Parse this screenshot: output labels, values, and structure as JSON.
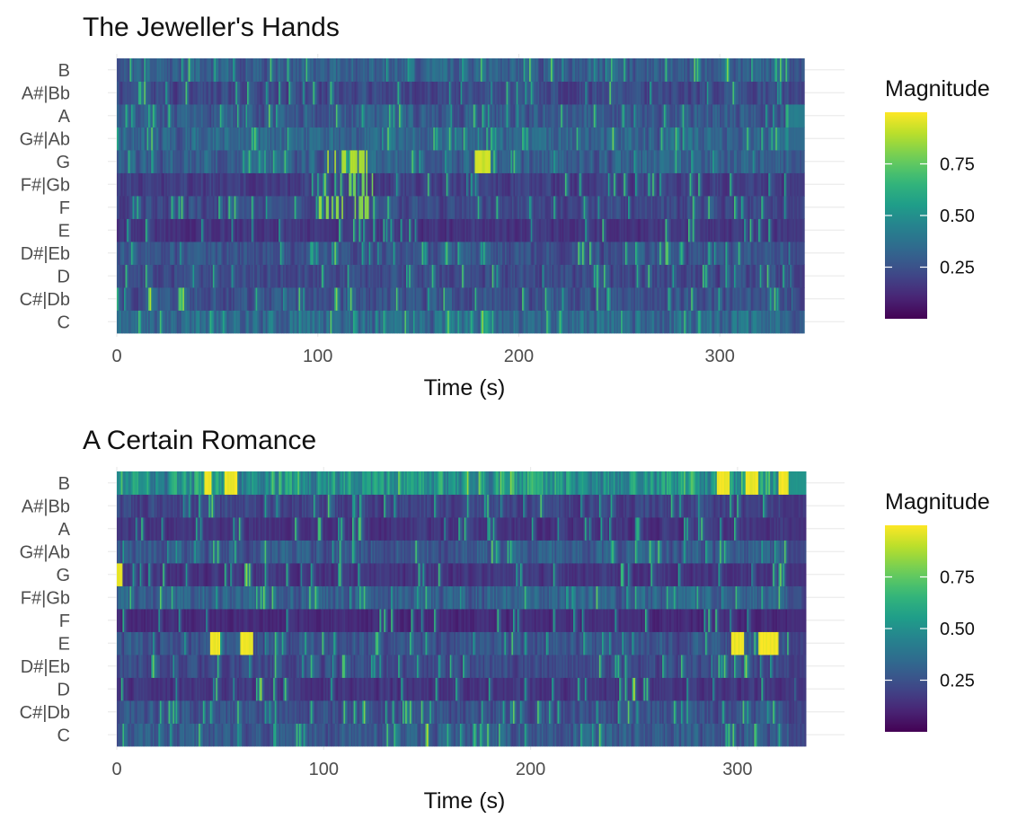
{
  "chart_data": [
    {
      "type": "heatmap",
      "title": "The Jeweller's Hands",
      "xlabel": "Time (s)",
      "ylabel": "",
      "pitch_classes": [
        "C",
        "C#|Db",
        "D",
        "D#|Eb",
        "E",
        "F",
        "F#|Gb",
        "G",
        "G#|Ab",
        "A",
        "A#|Bb",
        "B"
      ],
      "x_ticks": [
        "0",
        "100",
        "200",
        "300"
      ],
      "xlim": [
        0,
        350
      ],
      "duration_s": 342,
      "colorbar": {
        "title": "Magnitude",
        "ticks": [
          "0.25",
          "0.50",
          "0.75"
        ],
        "range": [
          0,
          1
        ],
        "palette": "viridis"
      },
      "grid": true,
      "approx_profile": [
        {
          "pitch": "C",
          "mean": 0.35,
          "notes": "frequent bright bursts 0-190s, moderate after"
        },
        {
          "pitch": "C#|Db",
          "mean": 0.25
        },
        {
          "pitch": "D",
          "mean": 0.22
        },
        {
          "pitch": "D#|Eb",
          "mean": 0.25,
          "notes": "sparse bright spikes"
        },
        {
          "pitch": "E",
          "mean": 0.15
        },
        {
          "pitch": "F",
          "mean": 0.22,
          "notes": "bright spikes near 100-125s"
        },
        {
          "pitch": "F#|Gb",
          "mean": 0.18,
          "notes": "bright spikes near 120s"
        },
        {
          "pitch": "G",
          "mean": 0.3,
          "notes": "bright around 100-125s and 180-185s"
        },
        {
          "pitch": "G#|Ab",
          "mean": 0.32,
          "notes": "more active after 180s"
        },
        {
          "pitch": "A",
          "mean": 0.28,
          "notes": "stronger toward the end, ~0.65 at 335-342s"
        },
        {
          "pitch": "A#|Bb",
          "mean": 0.22
        },
        {
          "pitch": "B",
          "mean": 0.3
        }
      ]
    },
    {
      "type": "heatmap",
      "title": "A Certain Romance",
      "xlabel": "Time (s)",
      "ylabel": "",
      "pitch_classes": [
        "C",
        "C#|Db",
        "D",
        "D#|Eb",
        "E",
        "F",
        "F#|Gb",
        "G",
        "G#|Ab",
        "A",
        "A#|Bb",
        "B"
      ],
      "x_ticks": [
        "0",
        "100",
        "200",
        "300"
      ],
      "xlim": [
        0,
        340
      ],
      "duration_s": 333,
      "colorbar": {
        "title": "Magnitude",
        "ticks": [
          "0.25",
          "0.50",
          "0.75"
        ],
        "range": [
          0,
          1
        ],
        "palette": "viridis"
      },
      "grid": true,
      "approx_profile": [
        {
          "pitch": "C",
          "mean": 0.28,
          "notes": "moderate activity 5-40s"
        },
        {
          "pitch": "C#|Db",
          "mean": 0.25
        },
        {
          "pitch": "D",
          "mean": 0.15
        },
        {
          "pitch": "D#|Eb",
          "mean": 0.22
        },
        {
          "pitch": "E",
          "mean": 0.25,
          "notes": "yellow blocks at ~45-50s, 60-66s, 297-303s, 310-320s"
        },
        {
          "pitch": "F",
          "mean": 0.12
        },
        {
          "pitch": "F#|Gb",
          "mean": 0.3,
          "notes": "regular bright spikes 80-290s"
        },
        {
          "pitch": "G",
          "mean": 0.15,
          "notes": "yellow at 0-3s"
        },
        {
          "pitch": "G#|Ab",
          "mean": 0.28
        },
        {
          "pitch": "A",
          "mean": 0.15
        },
        {
          "pitch": "A#|Bb",
          "mean": 0.2
        },
        {
          "pitch": "B",
          "mean": 0.5,
          "notes": "yellow at 42-46s, 52-58s, 290-296s, 304-310s, 320-333s"
        }
      ]
    }
  ]
}
